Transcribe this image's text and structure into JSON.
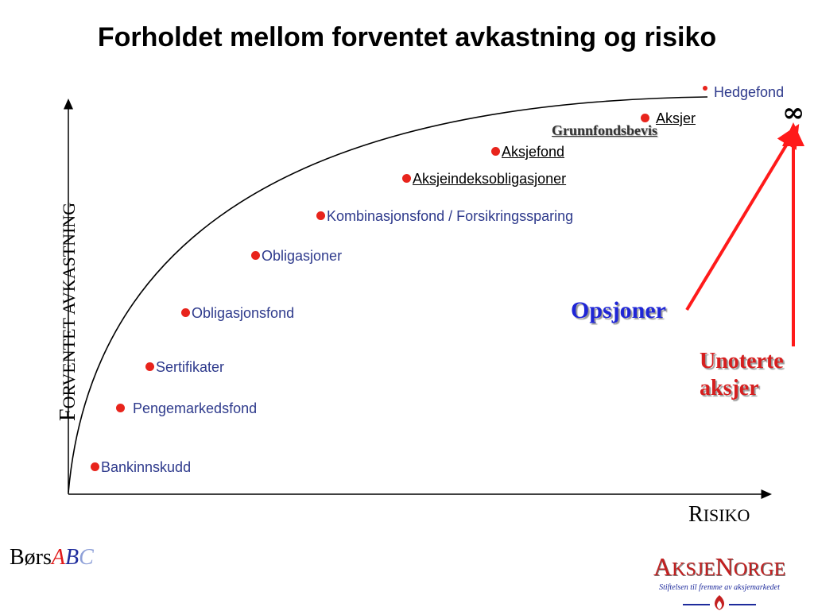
{
  "title": "Forholdet mellom forventet avkastning og risiko",
  "y_axis": {
    "first": "F",
    "rest": "ORVENTET AVKASTNING"
  },
  "x_axis": {
    "first": "R",
    "rest": "ISIKO"
  },
  "items": [
    {
      "label": "Bankinnskudd"
    },
    {
      "label": "Pengemarkedsfond"
    },
    {
      "label": "Sertifikater"
    },
    {
      "label": "Obligasjonsfond"
    },
    {
      "label": "Obligasjoner"
    },
    {
      "label": "Kombinasjonsfond / Forsikringssparing"
    },
    {
      "label": "Aksjeindeksobligasjoner"
    },
    {
      "label": "Aksjefond"
    },
    {
      "label": "Grunnfondsbevis"
    },
    {
      "label": "Aksjer"
    },
    {
      "label": "Hedgefond"
    }
  ],
  "infinity": "∞",
  "opsjoner": "Opsjoner",
  "unoterte": {
    "line1": "Unoterte",
    "line2": "aksjer"
  },
  "colors": {
    "dot": "#e8241c",
    "label": "#2e3a8c",
    "arrow": "#ff1a1a",
    "opsjoner": "#1f26d6",
    "unoterte": "#d61f1f"
  },
  "logos": {
    "bors": {
      "p1": "Børs",
      "p2": "A",
      "p3": "B",
      "p4": "C"
    },
    "aksjenorge": {
      "n1": "A",
      "n2": "KSJE",
      "n3": "N",
      "n4": "ORGE",
      "tagline": "Stiftelsen til fremme av aksjemarkedet"
    }
  }
}
